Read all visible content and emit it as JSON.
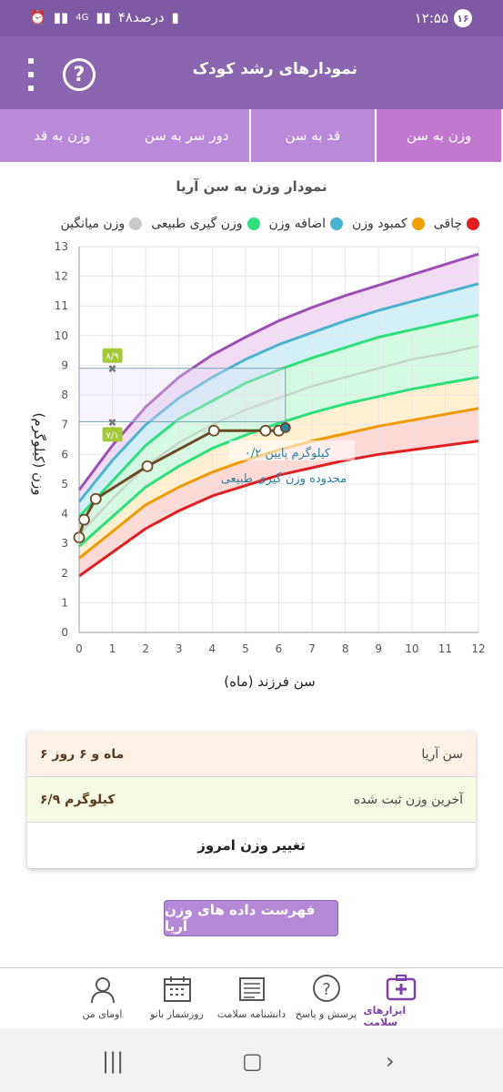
{
  "status": {
    "time": "۱۲:۵۵",
    "notif_count": "۱۶",
    "battery": "۴۸درصد",
    "net": "4G",
    "volte": "Vo) LTE2"
  },
  "app": {
    "title": "نمودارهای رشد کودک",
    "help_icon": "question-circle-icon",
    "menu_icon": "more-vertical-icon"
  },
  "tabs": [
    {
      "label": "وزن به سن",
      "active": true
    },
    {
      "label": "قد به سن",
      "active": false
    },
    {
      "label": "دور سر به سن",
      "active": false
    },
    {
      "label": "وزن به قد",
      "active": false
    }
  ],
  "chart_data": {
    "type": "line",
    "title": "نمودار وزن به سن آریا",
    "xlabel": "سن فرزند (ماه)",
    "ylabel": "وزن (کیلوگرم)",
    "xlim": [
      0,
      12
    ],
    "ylim": [
      0,
      13
    ],
    "x_ticks": [
      "0",
      "1",
      "2",
      "3",
      "4",
      "5",
      "6",
      "7",
      "8",
      "9",
      "10",
      "11",
      "12"
    ],
    "y_ticks": [
      "0",
      "1",
      "2",
      "3",
      "4",
      "5",
      "6",
      "7",
      "8",
      "9",
      "10",
      "11",
      "12",
      "13"
    ],
    "legend": [
      {
        "name": "چاقی",
        "color": "#e02020"
      },
      {
        "name": "کمبود وزن",
        "color": "#f0a000"
      },
      {
        "name": "اضافه وزن",
        "color": "#4bb3d0"
      },
      {
        "name": "وزن گیری طبیعی",
        "color": "#2ee07a"
      },
      {
        "name": "وزن میانگین",
        "color": "#c8c8c8"
      }
    ],
    "reference_x": [
      0,
      1,
      2,
      3,
      4,
      5,
      6,
      7,
      8,
      9,
      10,
      11,
      12
    ],
    "reference_series": [
      {
        "key": "red",
        "color": "#e02020",
        "values": [
          1.9,
          2.7,
          3.5,
          4.1,
          4.6,
          4.95,
          5.3,
          5.55,
          5.8,
          6.0,
          6.15,
          6.3,
          6.45
        ]
      },
      {
        "key": "orange",
        "color": "#f09a00",
        "values": [
          2.5,
          3.4,
          4.3,
          4.9,
          5.4,
          5.8,
          6.15,
          6.45,
          6.7,
          6.95,
          7.15,
          7.35,
          7.55
        ]
      },
      {
        "key": "green_low",
        "color": "#2ee07a",
        "values": [
          2.9,
          3.9,
          4.9,
          5.6,
          6.2,
          6.65,
          7.05,
          7.4,
          7.7,
          7.95,
          8.2,
          8.4,
          8.6
        ]
      },
      {
        "key": "median",
        "color": "#c7d6c7",
        "values": [
          3.3,
          4.5,
          5.6,
          6.4,
          7.0,
          7.5,
          7.9,
          8.3,
          8.6,
          8.9,
          9.2,
          9.4,
          9.65
        ]
      },
      {
        "key": "green_high",
        "color": "#2ee07a",
        "values": [
          3.9,
          5.1,
          6.3,
          7.2,
          7.8,
          8.4,
          8.85,
          9.25,
          9.6,
          9.95,
          10.2,
          10.45,
          10.7
        ]
      },
      {
        "key": "blue",
        "color": "#4bb3d0",
        "values": [
          4.4,
          5.8,
          7.0,
          7.9,
          8.6,
          9.2,
          9.7,
          10.1,
          10.5,
          10.85,
          11.15,
          11.45,
          11.75
        ]
      },
      {
        "key": "purple",
        "color": "#9b4fb5",
        "values": [
          4.8,
          6.3,
          7.6,
          8.6,
          9.35,
          9.95,
          10.5,
          10.95,
          11.35,
          11.7,
          12.05,
          12.4,
          12.75
        ]
      }
    ],
    "child_series": {
      "name": "وزن آریا",
      "color": "#6b4a24",
      "points": [
        {
          "x": 0,
          "y": 3.2
        },
        {
          "x": 0.15,
          "y": 3.8
        },
        {
          "x": 0.5,
          "y": 4.5
        },
        {
          "x": 2.05,
          "y": 5.6
        },
        {
          "x": 4.05,
          "y": 6.8
        },
        {
          "x": 5.6,
          "y": 6.8
        },
        {
          "x": 6.0,
          "y": 6.8
        },
        {
          "x": 6.2,
          "y": 6.9
        }
      ]
    },
    "markers": [
      {
        "x": 1,
        "y": 8.9,
        "label": "۸/۹"
      },
      {
        "x": 1,
        "y": 7.1,
        "label": "۷/۱"
      }
    ],
    "guide_box": {
      "x0": 0,
      "x1": 6.2,
      "y0": 7.1,
      "y1": 8.9
    },
    "annotation_lines": [
      "۰/۲ کیلوگرم پایین",
      "محدوده وزن گیری طبیعی"
    ]
  },
  "info_card": {
    "age_label": "سن آریا",
    "age_value": "۶ ماه و ۶ روز",
    "weight_label": "آخرین وزن ثبت شده",
    "weight_value": "۶/۹ کیلوگرم",
    "change_weight": "تغییر وزن امروز"
  },
  "list_button": "فهرست داده های وزن آریا",
  "bottom_nav": [
    {
      "label": "ابزارهای سلامت",
      "icon": "medical-kit-icon",
      "active": true
    },
    {
      "label": "پرسش و پاسخ",
      "icon": "question-bubble-icon",
      "active": false
    },
    {
      "label": "دانشنامه سلامت",
      "icon": "newspaper-icon",
      "active": false
    },
    {
      "label": "روزشمار بانو",
      "icon": "calendar-icon",
      "active": false
    },
    {
      "label": "اومای من",
      "icon": "user-profile-icon",
      "active": false
    }
  ]
}
